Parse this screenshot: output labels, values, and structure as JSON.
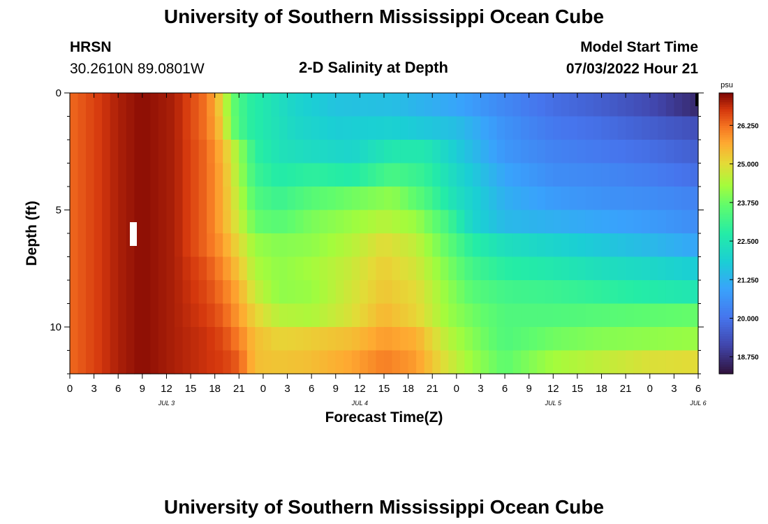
{
  "page": {
    "title": "University of Southern Mississippi Ocean Cube",
    "footer_title": "University of Southern Mississippi Ocean Cube",
    "station": "HRSN",
    "coordinates": "30.2610N  89.0801W",
    "plot_title": "2-D Salinity at Depth",
    "model_start_label": "Model Start Time",
    "model_start_value": "07/03/2022 Hour 21"
  },
  "chart_data": {
    "type": "heatmap",
    "title": "2-D Salinity at Depth",
    "xlabel": "Forecast Time(Z)",
    "ylabel": "Depth (ft)",
    "colorbar_unit": "psu",
    "x_ticks": [
      "0",
      "3",
      "6",
      "9",
      "12",
      "15",
      "18",
      "21",
      "0",
      "3",
      "6",
      "9",
      "12",
      "15",
      "18",
      "21",
      "0",
      "3",
      "6",
      "9",
      "12",
      "15",
      "18",
      "21",
      "0",
      "3",
      "6"
    ],
    "date_labels": [
      {
        "label": "JUL 3",
        "at_tick": 4
      },
      {
        "label": "JUL 4",
        "at_tick": 12
      },
      {
        "label": "JUL 5",
        "at_tick": 20
      },
      {
        "label": "JUL 6",
        "at_tick": 26
      }
    ],
    "y_ticks": [
      "0",
      "5",
      "10"
    ],
    "ylim": [
      0,
      12
    ],
    "x_range_hours": [
      0,
      78
    ],
    "colorbar_ticks": [
      "26.250",
      "25.000",
      "23.750",
      "22.500",
      "21.250",
      "20.000",
      "18.750"
    ],
    "colorbar_range": [
      18.2,
      27.3
    ],
    "depth_levels_ft": [
      0.5,
      1.5,
      2.5,
      3.5,
      4.5,
      5.5,
      6.5,
      7.5,
      8.5,
      9.5,
      10.5,
      11.5
    ],
    "series": [
      {
        "depth_ft": 0.5,
        "hours": [
          0,
          6,
          9,
          13,
          17,
          19,
          20,
          22,
          24,
          28,
          33,
          40,
          48,
          54,
          60,
          66,
          72,
          78
        ],
        "values": [
          26.3,
          27.0,
          27.2,
          27.0,
          26.2,
          25.0,
          23.8,
          22.9,
          22.6,
          22.0,
          21.6,
          21.5,
          21.0,
          20.4,
          19.9,
          19.6,
          19.2,
          18.6
        ]
      },
      {
        "depth_ft": 1.5,
        "hours": [
          0,
          6,
          9,
          13,
          17,
          19,
          20,
          22,
          24,
          28,
          33,
          40,
          48,
          54,
          60,
          66,
          72,
          78
        ],
        "values": [
          26.3,
          27.0,
          27.2,
          27.0,
          26.2,
          25.2,
          23.9,
          22.9,
          22.6,
          22.1,
          21.8,
          21.9,
          21.5,
          20.6,
          20.1,
          19.9,
          19.6,
          19.3
        ]
      },
      {
        "depth_ft": 2.5,
        "hours": [
          0,
          6,
          9,
          13,
          17,
          19,
          21,
          23,
          26,
          30,
          35,
          40,
          44,
          48,
          54,
          60,
          66,
          72,
          78
        ],
        "values": [
          26.3,
          27.0,
          27.2,
          27.0,
          26.3,
          25.5,
          24.2,
          22.9,
          22.4,
          22.2,
          22.0,
          22.6,
          22.6,
          21.8,
          20.7,
          20.3,
          20.1,
          19.9,
          19.6
        ]
      },
      {
        "depth_ft": 3.5,
        "hours": [
          0,
          6,
          9,
          13,
          17,
          19,
          21,
          23,
          26,
          30,
          35,
          40,
          44,
          48,
          54,
          60,
          66,
          72,
          78
        ],
        "values": [
          26.3,
          27.0,
          27.2,
          27.0,
          26.3,
          25.6,
          24.3,
          23.1,
          22.7,
          22.9,
          22.7,
          23.3,
          23.0,
          22.1,
          21.0,
          20.5,
          20.4,
          20.2,
          19.9
        ]
      },
      {
        "depth_ft": 4.5,
        "hours": [
          0,
          6,
          9,
          13,
          17,
          19,
          21,
          23,
          26,
          30,
          35,
          40,
          44,
          48,
          54,
          60,
          66,
          72,
          78
        ],
        "values": [
          26.3,
          27.0,
          27.2,
          27.0,
          26.3,
          25.6,
          24.5,
          23.4,
          23.1,
          23.5,
          23.8,
          24.1,
          23.4,
          22.3,
          21.2,
          20.8,
          20.6,
          20.5,
          20.3
        ]
      },
      {
        "depth_ft": 5.5,
        "hours": [
          0,
          6,
          9,
          13,
          17,
          19,
          21,
          23,
          26,
          30,
          35,
          39,
          43,
          47,
          50,
          54,
          60,
          66,
          72,
          78
        ],
        "values": [
          26.3,
          27.0,
          27.2,
          27.0,
          26.3,
          25.6,
          24.7,
          23.7,
          23.5,
          23.9,
          24.2,
          24.5,
          24.2,
          23.2,
          22.0,
          21.4,
          21.2,
          21.0,
          20.8,
          20.5
        ]
      },
      {
        "depth_ft": 6.5,
        "hours": [
          0,
          6,
          9,
          13,
          17,
          19,
          21,
          23,
          26,
          30,
          35,
          39,
          43,
          47,
          50,
          54,
          60,
          66,
          72,
          78
        ],
        "values": [
          26.3,
          27.0,
          27.2,
          27.0,
          26.3,
          25.8,
          25.0,
          24.2,
          24.0,
          24.1,
          24.5,
          25.0,
          24.6,
          23.6,
          22.8,
          22.3,
          22.0,
          21.7,
          21.4,
          21.0
        ]
      },
      {
        "depth_ft": 7.5,
        "hours": [
          0,
          6,
          9,
          13,
          17,
          19,
          21,
          23,
          26,
          30,
          35,
          39,
          43,
          47,
          50,
          54,
          60,
          66,
          72,
          78
        ],
        "values": [
          26.3,
          27.0,
          27.2,
          27.0,
          26.5,
          26.0,
          25.3,
          24.4,
          24.1,
          24.3,
          24.7,
          25.2,
          24.8,
          23.9,
          23.2,
          22.8,
          22.6,
          22.3,
          22.1,
          21.8
        ]
      },
      {
        "depth_ft": 8.5,
        "hours": [
          0,
          6,
          9,
          13,
          17,
          19,
          21,
          23,
          26,
          30,
          35,
          39,
          43,
          47,
          50,
          54,
          60,
          66,
          72,
          78
        ],
        "values": [
          26.3,
          27.0,
          27.2,
          27.0,
          26.6,
          26.2,
          25.6,
          24.7,
          24.1,
          24.2,
          24.8,
          25.3,
          25.0,
          24.1,
          23.5,
          23.2,
          23.1,
          22.9,
          22.7,
          22.5
        ]
      },
      {
        "depth_ft": 9.5,
        "hours": [
          0,
          6,
          9,
          13,
          17,
          19,
          21,
          23,
          26,
          30,
          35,
          39,
          43,
          47,
          50,
          54,
          60,
          66,
          72,
          78
        ],
        "values": [
          26.3,
          27.0,
          27.2,
          27.0,
          26.7,
          26.4,
          25.8,
          25.1,
          24.5,
          24.4,
          24.9,
          25.5,
          25.1,
          24.2,
          23.8,
          23.4,
          23.4,
          23.5,
          23.6,
          23.7
        ]
      },
      {
        "depth_ft": 10.5,
        "hours": [
          0,
          6,
          9,
          13,
          17,
          19,
          21,
          23,
          26,
          30,
          35,
          39,
          43,
          47,
          50,
          54,
          60,
          66,
          72,
          78
        ],
        "values": [
          26.3,
          27.0,
          27.2,
          27.0,
          26.8,
          26.6,
          26.1,
          25.4,
          25.1,
          25.2,
          25.4,
          25.8,
          25.6,
          24.5,
          24.0,
          23.4,
          23.8,
          24.0,
          24.1,
          24.2
        ]
      },
      {
        "depth_ft": 11.5,
        "hours": [
          0,
          6,
          9,
          13,
          17,
          19,
          21,
          23,
          26,
          30,
          35,
          39,
          43,
          47,
          50,
          54,
          60,
          66,
          72,
          78
        ],
        "values": [
          26.3,
          27.0,
          27.2,
          27.0,
          26.8,
          26.7,
          26.4,
          25.4,
          25.3,
          25.4,
          25.7,
          26.1,
          25.8,
          24.8,
          24.2,
          23.6,
          24.3,
          24.6,
          24.9,
          25.0
        ]
      }
    ]
  }
}
